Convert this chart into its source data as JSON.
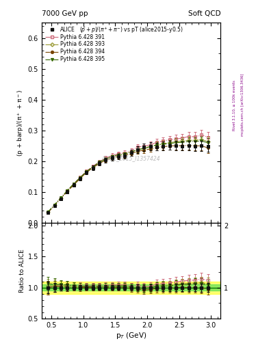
{
  "title_top_left": "7000 GeV pp",
  "title_top_right": "Soft QCD",
  "plot_title": "(#bar{p}+p)/(π⁺+π⁻) vs pT (alice2015-y0.5)",
  "xlabel": "p_T (GeV)",
  "ylabel_main": "(p + barp)/(pi^{+} + pi^{-})",
  "ylabel_ratio": "Ratio to ALICE",
  "watermark": "ALICE_2015_I1357424",
  "right_label1": "Rivet 3.1.10, ≥ 100k events",
  "right_label2": "mcplots.cern.ch [arXiv:1306.3436]",
  "alice_x": [
    0.45,
    0.55,
    0.65,
    0.75,
    0.85,
    0.95,
    1.05,
    1.15,
    1.25,
    1.35,
    1.45,
    1.55,
    1.65,
    1.75,
    1.85,
    1.95,
    2.05,
    2.15,
    2.25,
    2.35,
    2.45,
    2.55,
    2.65,
    2.75,
    2.85,
    2.95
  ],
  "alice_y": [
    0.033,
    0.055,
    0.077,
    0.1,
    0.122,
    0.143,
    0.163,
    0.178,
    0.193,
    0.203,
    0.21,
    0.215,
    0.218,
    0.228,
    0.237,
    0.245,
    0.248,
    0.247,
    0.249,
    0.251,
    0.25,
    0.249,
    0.251,
    0.249,
    0.25,
    0.249
  ],
  "alice_yerr": [
    0.003,
    0.004,
    0.004,
    0.005,
    0.005,
    0.006,
    0.006,
    0.007,
    0.007,
    0.008,
    0.008,
    0.009,
    0.009,
    0.01,
    0.011,
    0.012,
    0.013,
    0.013,
    0.014,
    0.015,
    0.015,
    0.015,
    0.016,
    0.016,
    0.017,
    0.018
  ],
  "py391_x": [
    0.45,
    0.55,
    0.65,
    0.75,
    0.85,
    0.95,
    1.05,
    1.15,
    1.25,
    1.35,
    1.45,
    1.55,
    1.65,
    1.75,
    1.85,
    1.95,
    2.05,
    2.15,
    2.25,
    2.35,
    2.45,
    2.55,
    2.65,
    2.75,
    2.85,
    2.95
  ],
  "py391_y": [
    0.033,
    0.056,
    0.08,
    0.103,
    0.126,
    0.147,
    0.167,
    0.183,
    0.198,
    0.21,
    0.218,
    0.224,
    0.227,
    0.233,
    0.246,
    0.248,
    0.253,
    0.261,
    0.265,
    0.27,
    0.272,
    0.275,
    0.28,
    0.279,
    0.285,
    0.278
  ],
  "py391_yerr": [
    0.002,
    0.003,
    0.003,
    0.004,
    0.004,
    0.005,
    0.005,
    0.005,
    0.006,
    0.006,
    0.007,
    0.007,
    0.008,
    0.008,
    0.009,
    0.01,
    0.01,
    0.011,
    0.012,
    0.012,
    0.013,
    0.013,
    0.014,
    0.015,
    0.016,
    0.017
  ],
  "py393_x": [
    0.45,
    0.55,
    0.65,
    0.75,
    0.85,
    0.95,
    1.05,
    1.15,
    1.25,
    1.35,
    1.45,
    1.55,
    1.65,
    1.75,
    1.85,
    1.95,
    2.05,
    2.15,
    2.25,
    2.35,
    2.45,
    2.55,
    2.65,
    2.75,
    2.85,
    2.95
  ],
  "py393_y": [
    0.034,
    0.057,
    0.08,
    0.103,
    0.124,
    0.145,
    0.165,
    0.18,
    0.196,
    0.207,
    0.215,
    0.22,
    0.224,
    0.23,
    0.238,
    0.242,
    0.248,
    0.253,
    0.257,
    0.26,
    0.263,
    0.265,
    0.268,
    0.268,
    0.27,
    0.264
  ],
  "py393_yerr": [
    0.002,
    0.003,
    0.003,
    0.004,
    0.004,
    0.005,
    0.005,
    0.005,
    0.006,
    0.006,
    0.006,
    0.007,
    0.007,
    0.008,
    0.008,
    0.009,
    0.009,
    0.01,
    0.011,
    0.011,
    0.012,
    0.012,
    0.013,
    0.014,
    0.015,
    0.016
  ],
  "py394_x": [
    0.45,
    0.55,
    0.65,
    0.75,
    0.85,
    0.95,
    1.05,
    1.15,
    1.25,
    1.35,
    1.45,
    1.55,
    1.65,
    1.75,
    1.85,
    1.95,
    2.05,
    2.15,
    2.25,
    2.35,
    2.45,
    2.55,
    2.65,
    2.75,
    2.85,
    2.95
  ],
  "py394_y": [
    0.033,
    0.056,
    0.078,
    0.101,
    0.122,
    0.143,
    0.163,
    0.178,
    0.192,
    0.203,
    0.21,
    0.215,
    0.218,
    0.224,
    0.232,
    0.235,
    0.24,
    0.244,
    0.247,
    0.249,
    0.25,
    0.25,
    0.251,
    0.249,
    0.25,
    0.243
  ],
  "py394_yerr": [
    0.002,
    0.003,
    0.003,
    0.004,
    0.004,
    0.005,
    0.005,
    0.005,
    0.005,
    0.006,
    0.006,
    0.007,
    0.007,
    0.008,
    0.008,
    0.009,
    0.009,
    0.01,
    0.01,
    0.011,
    0.012,
    0.012,
    0.013,
    0.014,
    0.015,
    0.016
  ],
  "py395_x": [
    0.45,
    0.55,
    0.65,
    0.75,
    0.85,
    0.95,
    1.05,
    1.15,
    1.25,
    1.35,
    1.45,
    1.55,
    1.65,
    1.75,
    1.85,
    1.95,
    2.05,
    2.15,
    2.25,
    2.35,
    2.45,
    2.55,
    2.65,
    2.75,
    2.85,
    2.95
  ],
  "py395_y": [
    0.035,
    0.058,
    0.081,
    0.104,
    0.126,
    0.146,
    0.166,
    0.181,
    0.196,
    0.207,
    0.215,
    0.22,
    0.223,
    0.229,
    0.237,
    0.241,
    0.247,
    0.252,
    0.255,
    0.257,
    0.26,
    0.261,
    0.264,
    0.264,
    0.265,
    0.26
  ],
  "py395_yerr": [
    0.002,
    0.003,
    0.003,
    0.004,
    0.004,
    0.004,
    0.005,
    0.005,
    0.006,
    0.006,
    0.006,
    0.007,
    0.007,
    0.008,
    0.008,
    0.009,
    0.009,
    0.01,
    0.01,
    0.011,
    0.012,
    0.012,
    0.013,
    0.013,
    0.014,
    0.015
  ],
  "alice_color": "#111111",
  "py391_color": "#cc6677",
  "py393_color": "#999933",
  "py394_color": "#774400",
  "py395_color": "#336600",
  "band_green_inner": 0.05,
  "band_yellow_outer": 0.1,
  "ylim_main": [
    0.0,
    0.65
  ],
  "ylim_ratio": [
    0.5,
    2.05
  ],
  "xlim": [
    0.35,
    3.15
  ]
}
